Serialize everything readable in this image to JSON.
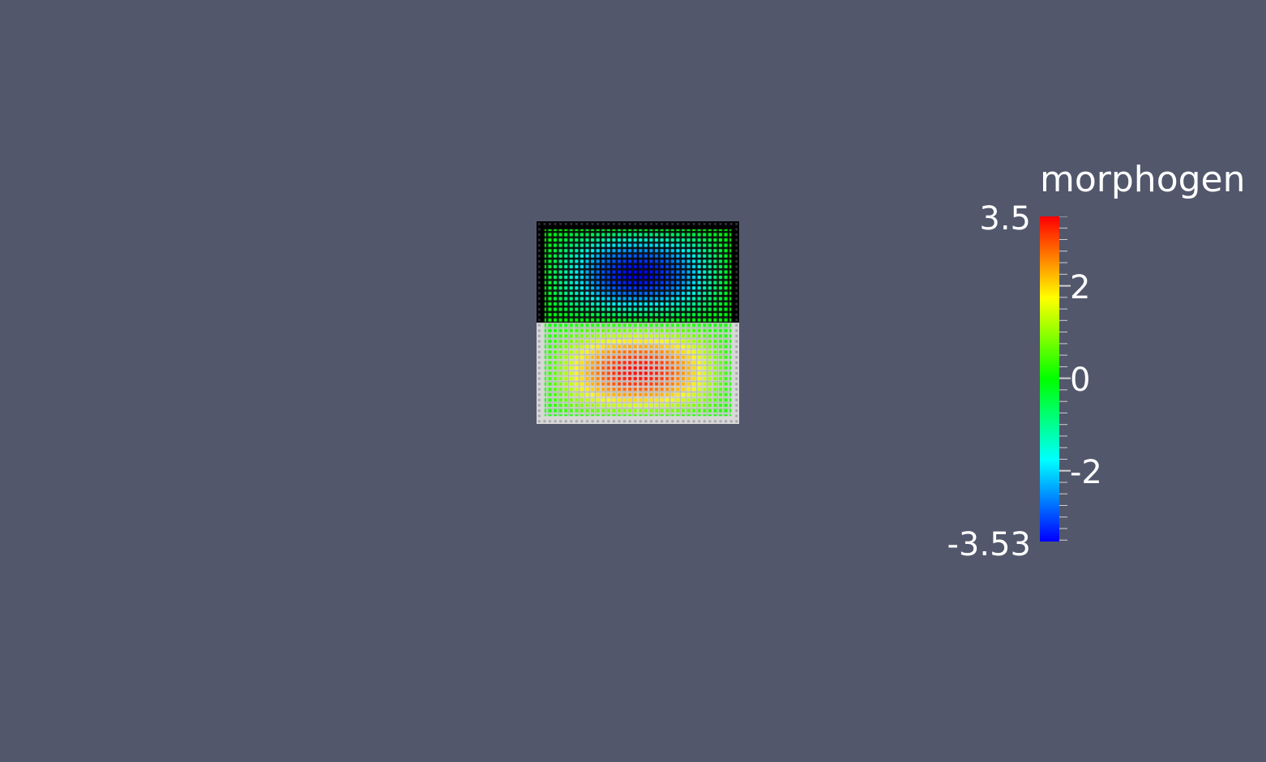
{
  "scene": {
    "background_color": "#52576c",
    "field_name": "morphogen"
  },
  "colorbar": {
    "title": "morphogen",
    "range": [
      -3.53,
      3.5
    ],
    "max_label": "3.5",
    "min_label": "-3.53",
    "tick_labels": [
      "2",
      "0",
      "-2"
    ],
    "tick_values": [
      2,
      0,
      -2
    ],
    "colormap": "rainbow",
    "colormap_stops": [
      "#0000ff",
      "#00ffff",
      "#00ff00",
      "#ffff00",
      "#ff0000"
    ]
  },
  "mesh": {
    "grid_cells": 38,
    "upper_half_value_range": [
      -3.53,
      0
    ],
    "lower_half_value_range": [
      0,
      3.5
    ],
    "upper_grid_line_color": "#000000",
    "lower_grid_line_color": "#d8d8d8"
  }
}
